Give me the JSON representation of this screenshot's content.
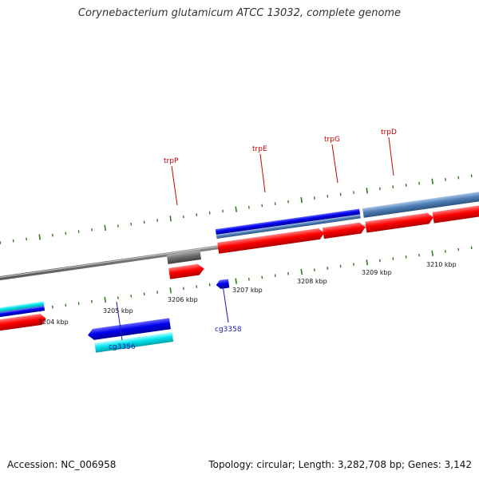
{
  "title": "Corynebacterium glutamicum ATCC 13032, complete genome",
  "footer": {
    "accession": "Accession: NC_006958",
    "summary": "Topology: circular; Length: 3,282,708 bp; Genes: 3,142"
  },
  "colors": {
    "backbone": "#8a8a8a",
    "tick": "#2e7d1f",
    "forward_gene": "#ff0000",
    "reverse_gene": "#0000ee",
    "cyan_gene": "#00e5ee",
    "steel_gene": "#4f7fb8",
    "gray_gene": "#707070",
    "label_top": "#cc0000",
    "label_bottom": "#1a1aaa"
  },
  "axis": {
    "unit": "kbp",
    "tick_labels": [
      "3204 kbp",
      "3205 kbp",
      "3206 kbp",
      "3207 kbp",
      "3208 kbp",
      "3209 kbp",
      "3210 kbp"
    ]
  },
  "gene_labels_top": [
    "trpP",
    "trpE",
    "trpG",
    "trpD"
  ],
  "gene_labels_bottom": [
    "cg3356",
    "cg3358"
  ]
}
